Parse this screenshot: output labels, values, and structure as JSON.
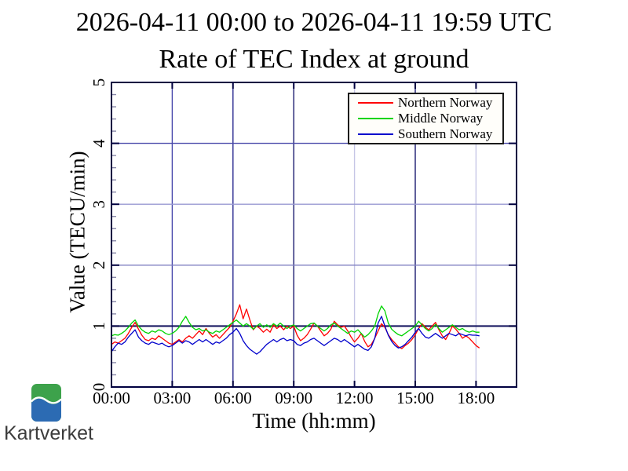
{
  "header": {},
  "branding": {
    "logo_text": "Kartverket",
    "logo_green": "#3da24b",
    "logo_blue": "#2c6bb3"
  },
  "chart_data": {
    "type": "line",
    "title": "Rate of TEC Index at ground",
    "subtitle": "2026-04-11 00:00 to 2026-04-11 19:59 UTC",
    "xlabel": "Time (hh:mm)",
    "ylabel": "Value (TECU/min)",
    "grid": true,
    "legend_position": "top-right",
    "ylim": [
      0,
      5
    ],
    "y_ticks": [
      0,
      1,
      2,
      3,
      4,
      5
    ],
    "y_minor_step": 0.2,
    "xlim_minutes": [
      0,
      1200
    ],
    "x_tick_minutes": [
      0,
      180,
      360,
      540,
      720,
      900,
      1080
    ],
    "x_tick_labels": [
      "00:00",
      "03:00",
      "06:00",
      "09:00",
      "12:00",
      "15:00",
      "18:00"
    ],
    "x_start_min": 0,
    "x_step_min": 10,
    "frame_color": "#000040",
    "series": [
      {
        "name": "Northern Norway",
        "color": "#ff0000",
        "values": [
          0.7,
          0.74,
          0.72,
          0.76,
          0.8,
          0.88,
          0.98,
          1.06,
          0.95,
          0.85,
          0.78,
          0.76,
          0.8,
          0.78,
          0.84,
          0.8,
          0.76,
          0.72,
          0.7,
          0.74,
          0.78,
          0.74,
          0.8,
          0.84,
          0.8,
          0.86,
          0.92,
          0.86,
          0.96,
          0.88,
          0.82,
          0.86,
          0.8,
          0.86,
          0.92,
          0.98,
          1.08,
          1.2,
          1.35,
          1.12,
          1.28,
          1.1,
          0.94,
          1.0,
          0.96,
          0.9,
          0.95,
          0.9,
          1.02,
          0.96,
          1.0,
          0.94,
          1.0,
          0.96,
          1.0,
          0.85,
          0.76,
          0.8,
          0.86,
          0.95,
          1.05,
          1.0,
          0.92,
          0.84,
          0.88,
          0.95,
          1.08,
          1.02,
          0.98,
          1.0,
          0.92,
          0.82,
          0.74,
          0.8,
          0.88,
          0.75,
          0.66,
          0.7,
          0.8,
          0.92,
          1.04,
          0.98,
          0.86,
          0.78,
          0.72,
          0.66,
          0.63,
          0.68,
          0.72,
          0.78,
          0.86,
          0.96,
          1.04,
          0.98,
          0.94,
          1.0,
          1.06,
          0.94,
          0.84,
          0.78,
          0.88,
          1.0,
          0.95,
          0.88,
          0.8,
          0.84,
          0.8,
          0.74,
          0.68,
          0.64
        ]
      },
      {
        "name": "Middle Norway",
        "color": "#00d400",
        "values": [
          0.84,
          0.86,
          0.85,
          0.88,
          0.92,
          0.98,
          1.05,
          1.1,
          1.0,
          0.94,
          0.9,
          0.88,
          0.92,
          0.9,
          0.94,
          0.92,
          0.88,
          0.86,
          0.88,
          0.92,
          0.98,
          1.08,
          1.16,
          1.06,
          0.98,
          0.94,
          0.96,
          0.92,
          0.94,
          0.9,
          0.88,
          0.92,
          0.9,
          0.94,
          0.98,
          1.02,
          1.06,
          1.1,
          1.05,
          1.0,
          1.04,
          1.0,
          0.95,
          1.0,
          1.04,
          0.98,
          1.02,
          0.98,
          1.04,
          1.0,
          1.05,
          1.0,
          0.96,
          1.0,
          1.02,
          0.96,
          0.92,
          0.96,
          1.0,
          1.04,
          1.05,
          1.0,
          0.96,
          0.92,
          0.96,
          1.02,
          1.05,
          1.0,
          0.96,
          0.92,
          0.88,
          0.92,
          0.9,
          0.94,
          0.88,
          0.82,
          0.86,
          0.92,
          1.0,
          1.2,
          1.33,
          1.25,
          1.05,
          0.95,
          0.9,
          0.86,
          0.84,
          0.88,
          0.92,
          0.96,
          1.0,
          1.08,
          1.02,
          0.96,
          0.92,
          0.96,
          1.03,
          0.96,
          0.9,
          0.94,
          0.98,
          1.02,
          0.98,
          0.94,
          0.96,
          0.92,
          0.9,
          0.92,
          0.9,
          0.9
        ]
      },
      {
        "name": "Southern Norway",
        "color": "#0000cc",
        "values": [
          0.58,
          0.66,
          0.72,
          0.7,
          0.74,
          0.82,
          0.88,
          0.94,
          0.82,
          0.76,
          0.72,
          0.7,
          0.74,
          0.72,
          0.7,
          0.72,
          0.68,
          0.66,
          0.68,
          0.72,
          0.76,
          0.72,
          0.76,
          0.74,
          0.7,
          0.74,
          0.78,
          0.74,
          0.78,
          0.74,
          0.7,
          0.74,
          0.72,
          0.76,
          0.8,
          0.86,
          0.9,
          0.96,
          0.88,
          0.76,
          0.68,
          0.62,
          0.58,
          0.54,
          0.58,
          0.64,
          0.7,
          0.74,
          0.78,
          0.74,
          0.78,
          0.8,
          0.76,
          0.78,
          0.76,
          0.7,
          0.68,
          0.72,
          0.74,
          0.78,
          0.8,
          0.76,
          0.72,
          0.68,
          0.72,
          0.76,
          0.8,
          0.78,
          0.74,
          0.78,
          0.74,
          0.7,
          0.66,
          0.7,
          0.66,
          0.62,
          0.6,
          0.66,
          0.8,
          1.05,
          1.16,
          1.0,
          0.85,
          0.75,
          0.68,
          0.64,
          0.66,
          0.7,
          0.76,
          0.82,
          0.9,
          0.96,
          0.88,
          0.82,
          0.8,
          0.84,
          0.88,
          0.84,
          0.8,
          0.84,
          0.88,
          0.86,
          0.84,
          0.88,
          0.86,
          0.84,
          0.86,
          0.85,
          0.85,
          0.84
        ]
      }
    ]
  }
}
